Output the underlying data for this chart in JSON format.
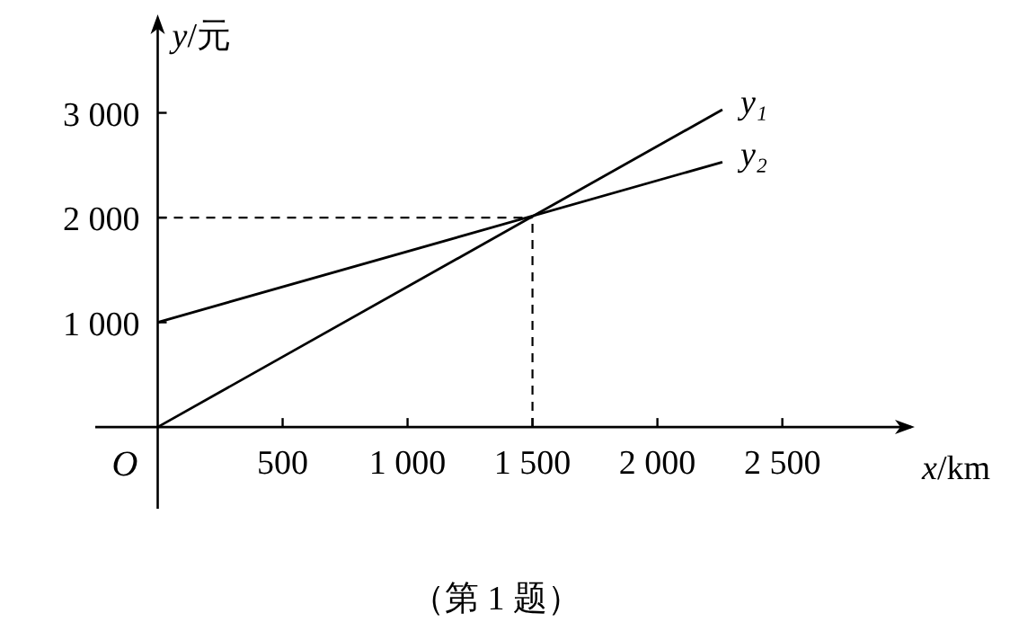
{
  "chart_data": {
    "type": "line",
    "xlabel": "x/km",
    "ylabel": "y/元",
    "xlim": [
      -250,
      3030
    ],
    "ylim": [
      -780,
      3940
    ],
    "xticks": [
      {
        "value": 500,
        "label": "500"
      },
      {
        "value": 1000,
        "label": "1 000"
      },
      {
        "value": 1500,
        "label": "1 500"
      },
      {
        "value": 2000,
        "label": "2 000"
      },
      {
        "value": 2500,
        "label": "2 500"
      }
    ],
    "yticks": [
      {
        "value": 1000,
        "label": "1 000"
      },
      {
        "value": 2000,
        "label": "2 000"
      },
      {
        "value": 3000,
        "label": "3 000"
      }
    ],
    "x": [
      0,
      2260
    ],
    "series": [
      {
        "name": "y₁",
        "color": "#000000",
        "values": [
          0,
          3030
        ]
      },
      {
        "name": "y₂",
        "color": "#000000",
        "values": [
          1000,
          2530
        ]
      }
    ],
    "ref_lines": [
      {
        "axis": "x",
        "value": 1500,
        "line_style": "dashed"
      },
      {
        "axis": "y",
        "value": 2000,
        "line_style": "dashed"
      }
    ],
    "annotations": [
      "O",
      "（第 1 题）"
    ],
    "grid": false,
    "legend": false,
    "marker": "none",
    "line_style": "solid"
  }
}
